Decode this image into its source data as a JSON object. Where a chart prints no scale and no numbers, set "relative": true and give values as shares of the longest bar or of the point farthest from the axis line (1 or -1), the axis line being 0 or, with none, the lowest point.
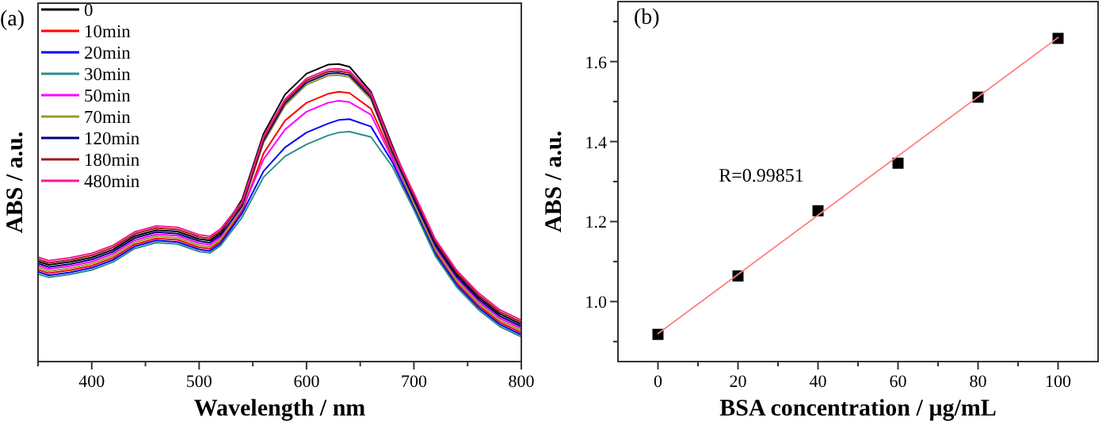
{
  "chart_data": [
    {
      "type": "line",
      "title": "(a)",
      "xlabel": "Wavelength / nm",
      "ylabel": "ABS / a.u.",
      "relative": true,
      "tick_labels": "x",
      "legend": "top left",
      "x": [
        350,
        360,
        380,
        400,
        420,
        440,
        460,
        480,
        500,
        510,
        520,
        540,
        560,
        580,
        600,
        620,
        630,
        640,
        660,
        680,
        700,
        720,
        740,
        760,
        780,
        800
      ],
      "xlim": [
        350,
        800
      ],
      "xticks": [
        {
          "value": 350,
          "label": null
        },
        400,
        {
          "value": 450,
          "label": null
        },
        500,
        {
          "value": 550,
          "label": null
        },
        600,
        {
          "value": 650,
          "label": null
        },
        700,
        {
          "value": 750,
          "label": null
        },
        800
      ],
      "series": [
        {
          "name": "0",
          "color": "#000000",
          "values": [
            0.337,
            0.325,
            0.335,
            0.35,
            0.377,
            0.422,
            0.442,
            0.437,
            0.412,
            0.407,
            0.432,
            0.545,
            0.766,
            0.898,
            0.968,
            0.998,
            1.0,
            0.991,
            0.907,
            0.725,
            0.552,
            0.397,
            0.292,
            0.217,
            0.16,
            0.125
          ]
        },
        {
          "name": "10min",
          "color": "#ff0000",
          "values": [
            0.309,
            0.297,
            0.307,
            0.322,
            0.349,
            0.394,
            0.414,
            0.409,
            0.384,
            0.379,
            0.404,
            0.505,
            0.7,
            0.81,
            0.87,
            0.9,
            0.907,
            0.903,
            0.85,
            0.69,
            0.524,
            0.369,
            0.264,
            0.189,
            0.132,
            0.097
          ]
        },
        {
          "name": "20min",
          "color": "#0000ff",
          "values": [
            0.302,
            0.29,
            0.3,
            0.315,
            0.342,
            0.387,
            0.407,
            0.402,
            0.377,
            0.372,
            0.397,
            0.498,
            0.64,
            0.72,
            0.77,
            0.8,
            0.812,
            0.815,
            0.79,
            0.67,
            0.517,
            0.362,
            0.257,
            0.182,
            0.125,
            0.09
          ]
        },
        {
          "name": "30min",
          "color": "#2e8b8b",
          "values": [
            0.295,
            0.283,
            0.293,
            0.308,
            0.335,
            0.38,
            0.4,
            0.395,
            0.37,
            0.365,
            0.39,
            0.485,
            0.62,
            0.69,
            0.73,
            0.76,
            0.77,
            0.773,
            0.755,
            0.655,
            0.51,
            0.355,
            0.25,
            0.175,
            0.118,
            0.083
          ]
        },
        {
          "name": "50min",
          "color": "#ff00ff",
          "values": [
            0.323,
            0.311,
            0.321,
            0.336,
            0.363,
            0.408,
            0.428,
            0.423,
            0.398,
            0.393,
            0.418,
            0.512,
            0.68,
            0.78,
            0.84,
            0.87,
            0.877,
            0.872,
            0.83,
            0.68,
            0.538,
            0.383,
            0.278,
            0.203,
            0.146,
            0.111
          ]
        },
        {
          "name": "70min",
          "color": "#999933",
          "values": [
            0.316,
            0.304,
            0.314,
            0.329,
            0.356,
            0.401,
            0.421,
            0.416,
            0.391,
            0.386,
            0.411,
            0.516,
            0.736,
            0.861,
            0.931,
            0.961,
            0.963,
            0.956,
            0.881,
            0.696,
            0.531,
            0.376,
            0.271,
            0.196,
            0.139,
            0.104
          ]
        },
        {
          "name": "120min",
          "color": "#000080",
          "values": [
            0.33,
            0.318,
            0.328,
            0.343,
            0.37,
            0.415,
            0.435,
            0.43,
            0.405,
            0.4,
            0.425,
            0.523,
            0.743,
            0.868,
            0.938,
            0.968,
            0.97,
            0.963,
            0.888,
            0.703,
            0.545,
            0.39,
            0.285,
            0.21,
            0.153,
            0.118
          ]
        },
        {
          "name": "180min",
          "color": "#a01818",
          "values": [
            0.344,
            0.332,
            0.342,
            0.357,
            0.384,
            0.429,
            0.449,
            0.444,
            0.419,
            0.414,
            0.439,
            0.53,
            0.75,
            0.875,
            0.945,
            0.975,
            0.977,
            0.97,
            0.895,
            0.71,
            0.559,
            0.404,
            0.299,
            0.224,
            0.167,
            0.132
          ]
        },
        {
          "name": "480min",
          "color": "#ff1493",
          "values": [
            0.351,
            0.339,
            0.349,
            0.364,
            0.391,
            0.436,
            0.456,
            0.451,
            0.426,
            0.421,
            0.446,
            0.537,
            0.757,
            0.882,
            0.952,
            0.982,
            0.984,
            0.977,
            0.902,
            0.717,
            0.566,
            0.411,
            0.306,
            0.231,
            0.174,
            0.139
          ]
        }
      ]
    },
    {
      "type": "scatter",
      "title": "(b)",
      "xlabel": "BSA concentration / μg/mL",
      "ylabel": "ABS / a.u.",
      "annotations": [
        "R=0.99851"
      ],
      "x": [
        0,
        20,
        40,
        60,
        80,
        100
      ],
      "xlim": [
        -10,
        110
      ],
      "xticks": [
        0,
        {
          "value": 10,
          "label": null
        },
        20,
        {
          "value": 30,
          "label": null
        },
        40,
        {
          "value": 50,
          "label": null
        },
        60,
        {
          "value": 70,
          "label": null
        },
        80,
        {
          "value": 90,
          "label": null
        },
        100
      ],
      "ylim": [
        0.85,
        1.75
      ],
      "yticks": [
        {
          "value": 0.9,
          "label": null
        },
        "1.0",
        {
          "value": 1.1,
          "label": null
        },
        1.2,
        {
          "value": 1.3,
          "label": null
        },
        1.4,
        {
          "value": 1.5,
          "label": null
        },
        1.6,
        {
          "value": 1.7,
          "label": null
        }
      ],
      "series": [
        {
          "color": "#000000",
          "marker": "square",
          "values": [
            0.918,
            1.064,
            1.227,
            1.346,
            1.511,
            1.658
          ]
        },
        {
          "type": "line",
          "color": "#ff8080",
          "x": [
            0,
            100
          ],
          "values": [
            0.92,
            1.66
          ]
        }
      ]
    }
  ]
}
